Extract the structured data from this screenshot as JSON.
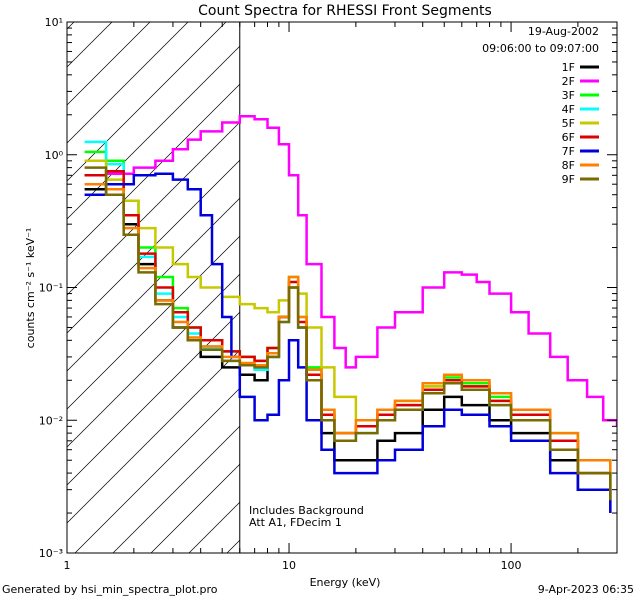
{
  "chart_data": {
    "type": "line",
    "title": "Count Spectra for RHESSI Front Segments",
    "xlabel": "Energy (keV)",
    "ylabel": "counts cm⁻² s⁻¹ keV⁻¹",
    "xscale": "log",
    "yscale": "log",
    "xlim": [
      1,
      300
    ],
    "ylim": [
      0.001,
      10
    ],
    "x_ticks": [
      {
        "value": 1,
        "label": "1"
      },
      {
        "value": 10,
        "label": "10"
      },
      {
        "value": 100,
        "label": "100"
      }
    ],
    "y_ticks": [
      {
        "value": 10,
        "label": "10¹"
      },
      {
        "value": 1,
        "label": "10⁰"
      },
      {
        "value": 0.1,
        "label": "10⁻¹"
      },
      {
        "value": 0.01,
        "label": "10⁻²"
      },
      {
        "value": 0.001,
        "label": "10⁻³"
      }
    ],
    "date": "19-Aug-2002",
    "time_range": "09:06:00 to 09:07:00",
    "shaded_region": {
      "from": 1,
      "to": 6,
      "description": "hatched low-energy region"
    },
    "annotations": [
      "Includes Background",
      "Att A1, FDecim 1"
    ],
    "series": [
      {
        "name": "1F",
        "color": "#000000",
        "points": [
          [
            1.2,
            0.55
          ],
          [
            1.5,
            0.6
          ],
          [
            1.8,
            0.3
          ],
          [
            2.1,
            0.15
          ],
          [
            2.5,
            0.08
          ],
          [
            3,
            0.05
          ],
          [
            3.5,
            0.04
          ],
          [
            4,
            0.03
          ],
          [
            5,
            0.025
          ],
          [
            6,
            0.022
          ],
          [
            7,
            0.02
          ],
          [
            8,
            0.03
          ],
          [
            9,
            0.06
          ],
          [
            10,
            0.1
          ],
          [
            11,
            0.05
          ],
          [
            12,
            0.02
          ],
          [
            14,
            0.008
          ],
          [
            16,
            0.005
          ],
          [
            20,
            0.005
          ],
          [
            25,
            0.007
          ],
          [
            30,
            0.008
          ],
          [
            40,
            0.012
          ],
          [
            50,
            0.015
          ],
          [
            60,
            0.013
          ],
          [
            80,
            0.01
          ],
          [
            100,
            0.008
          ],
          [
            150,
            0.005
          ],
          [
            200,
            0.003
          ],
          [
            280,
            0.002
          ]
        ]
      },
      {
        "name": "2F",
        "color": "#ff00ff",
        "points": [
          [
            1.2,
            0.7
          ],
          [
            1.5,
            0.72
          ],
          [
            2,
            0.8
          ],
          [
            2.5,
            0.9
          ],
          [
            3,
            1.1
          ],
          [
            3.5,
            1.3
          ],
          [
            4,
            1.5
          ],
          [
            5,
            1.75
          ],
          [
            6,
            1.95
          ],
          [
            7,
            1.85
          ],
          [
            8,
            1.6
          ],
          [
            9,
            1.2
          ],
          [
            10,
            0.7
          ],
          [
            11,
            0.35
          ],
          [
            12,
            0.15
          ],
          [
            14,
            0.06
          ],
          [
            16,
            0.035
          ],
          [
            18,
            0.025
          ],
          [
            20,
            0.03
          ],
          [
            25,
            0.05
          ],
          [
            30,
            0.065
          ],
          [
            40,
            0.1
          ],
          [
            50,
            0.13
          ],
          [
            60,
            0.125
          ],
          [
            70,
            0.11
          ],
          [
            80,
            0.09
          ],
          [
            100,
            0.065
          ],
          [
            120,
            0.045
          ],
          [
            150,
            0.03
          ],
          [
            180,
            0.02
          ],
          [
            220,
            0.015
          ],
          [
            260,
            0.01
          ],
          [
            300,
            0.009
          ]
        ]
      },
      {
        "name": "3F",
        "color": "#00ff00",
        "points": [
          [
            1.2,
            1.05
          ],
          [
            1.5,
            0.9
          ],
          [
            1.8,
            0.45
          ],
          [
            2.1,
            0.2
          ],
          [
            2.5,
            0.12
          ],
          [
            3,
            0.07
          ],
          [
            3.5,
            0.05
          ],
          [
            4,
            0.04
          ],
          [
            5,
            0.033
          ],
          [
            6,
            0.03
          ],
          [
            7,
            0.028
          ],
          [
            8,
            0.035
          ],
          [
            9,
            0.06
          ],
          [
            10,
            0.12
          ],
          [
            11,
            0.06
          ],
          [
            12,
            0.025
          ],
          [
            14,
            0.012
          ],
          [
            16,
            0.008
          ],
          [
            20,
            0.009
          ],
          [
            25,
            0.011
          ],
          [
            30,
            0.013
          ],
          [
            40,
            0.018
          ],
          [
            50,
            0.021
          ],
          [
            60,
            0.019
          ],
          [
            80,
            0.015
          ],
          [
            100,
            0.012
          ],
          [
            150,
            0.008
          ],
          [
            200,
            0.005
          ],
          [
            280,
            0.003
          ]
        ]
      },
      {
        "name": "4F",
        "color": "#00ffff",
        "points": [
          [
            1.2,
            1.25
          ],
          [
            1.5,
            0.85
          ],
          [
            1.8,
            0.35
          ],
          [
            2.1,
            0.17
          ],
          [
            2.5,
            0.09
          ],
          [
            3,
            0.06
          ],
          [
            3.5,
            0.045
          ],
          [
            4,
            0.035
          ],
          [
            5,
            0.028
          ],
          [
            6,
            0.026
          ],
          [
            7,
            0.024
          ],
          [
            8,
            0.03
          ],
          [
            9,
            0.055
          ],
          [
            10,
            0.1
          ],
          [
            11,
            0.05
          ],
          [
            12,
            0.02
          ],
          [
            14,
            0.01
          ],
          [
            16,
            0.007
          ],
          [
            20,
            0.008
          ],
          [
            25,
            0.01
          ],
          [
            30,
            0.012
          ],
          [
            40,
            0.016
          ],
          [
            50,
            0.019
          ],
          [
            60,
            0.017
          ],
          [
            80,
            0.013
          ],
          [
            100,
            0.01
          ],
          [
            150,
            0.007
          ],
          [
            200,
            0.004
          ],
          [
            280,
            0.0025
          ]
        ]
      },
      {
        "name": "5F",
        "color": "#c8c800",
        "points": [
          [
            1.2,
            0.9
          ],
          [
            1.5,
            0.65
          ],
          [
            1.8,
            0.45
          ],
          [
            2.1,
            0.28
          ],
          [
            2.5,
            0.2
          ],
          [
            3,
            0.15
          ],
          [
            3.5,
            0.12
          ],
          [
            4,
            0.1
          ],
          [
            5,
            0.085
          ],
          [
            6,
            0.075
          ],
          [
            7,
            0.07
          ],
          [
            8,
            0.065
          ],
          [
            9,
            0.08
          ],
          [
            10,
            0.1
          ],
          [
            11,
            0.09
          ],
          [
            12,
            0.05
          ],
          [
            14,
            0.025
          ],
          [
            16,
            0.015
          ],
          [
            20,
            0.01
          ],
          [
            25,
            0.012
          ],
          [
            30,
            0.014
          ],
          [
            40,
            0.018
          ],
          [
            50,
            0.02
          ],
          [
            60,
            0.018
          ],
          [
            80,
            0.014
          ],
          [
            100,
            0.011
          ],
          [
            150,
            0.007
          ],
          [
            200,
            0.004
          ],
          [
            280,
            0.002
          ]
        ]
      },
      {
        "name": "6F",
        "color": "#dd0000",
        "points": [
          [
            1.2,
            0.7
          ],
          [
            1.5,
            0.75
          ],
          [
            1.8,
            0.35
          ],
          [
            2.1,
            0.18
          ],
          [
            2.5,
            0.1
          ],
          [
            3,
            0.065
          ],
          [
            3.5,
            0.05
          ],
          [
            4,
            0.04
          ],
          [
            5,
            0.033
          ],
          [
            6,
            0.03
          ],
          [
            7,
            0.028
          ],
          [
            8,
            0.035
          ],
          [
            9,
            0.06
          ],
          [
            10,
            0.11
          ],
          [
            11,
            0.055
          ],
          [
            12,
            0.022
          ],
          [
            14,
            0.011
          ],
          [
            16,
            0.008
          ],
          [
            20,
            0.009
          ],
          [
            25,
            0.011
          ],
          [
            30,
            0.013
          ],
          [
            40,
            0.017
          ],
          [
            50,
            0.02
          ],
          [
            60,
            0.018
          ],
          [
            80,
            0.014
          ],
          [
            100,
            0.011
          ],
          [
            150,
            0.007
          ],
          [
            200,
            0.004
          ],
          [
            280,
            0.0025
          ]
        ]
      },
      {
        "name": "7F",
        "color": "#0000dd",
        "points": [
          [
            1.2,
            0.5
          ],
          [
            1.5,
            0.6
          ],
          [
            2,
            0.7
          ],
          [
            2.5,
            0.72
          ],
          [
            3,
            0.65
          ],
          [
            3.5,
            0.55
          ],
          [
            4,
            0.35
          ],
          [
            4.5,
            0.15
          ],
          [
            5,
            0.06
          ],
          [
            5.5,
            0.03
          ],
          [
            6,
            0.015
          ],
          [
            7,
            0.01
          ],
          [
            8,
            0.011
          ],
          [
            9,
            0.02
          ],
          [
            10,
            0.04
          ],
          [
            11,
            0.025
          ],
          [
            12,
            0.01
          ],
          [
            14,
            0.006
          ],
          [
            16,
            0.004
          ],
          [
            20,
            0.004
          ],
          [
            25,
            0.005
          ],
          [
            30,
            0.006
          ],
          [
            40,
            0.009
          ],
          [
            50,
            0.012
          ],
          [
            60,
            0.011
          ],
          [
            80,
            0.009
          ],
          [
            100,
            0.007
          ],
          [
            150,
            0.004
          ],
          [
            200,
            0.003
          ],
          [
            280,
            0.002
          ]
        ]
      },
      {
        "name": "8F",
        "color": "#ff8000",
        "points": [
          [
            1.2,
            0.6
          ],
          [
            1.5,
            0.55
          ],
          [
            1.8,
            0.28
          ],
          [
            2.1,
            0.14
          ],
          [
            2.5,
            0.08
          ],
          [
            3,
            0.055
          ],
          [
            3.5,
            0.042
          ],
          [
            4,
            0.036
          ],
          [
            5,
            0.03
          ],
          [
            6,
            0.027
          ],
          [
            7,
            0.026
          ],
          [
            8,
            0.032
          ],
          [
            9,
            0.06
          ],
          [
            10,
            0.12
          ],
          [
            11,
            0.06
          ],
          [
            12,
            0.024
          ],
          [
            14,
            0.012
          ],
          [
            16,
            0.008
          ],
          [
            20,
            0.01
          ],
          [
            25,
            0.012
          ],
          [
            30,
            0.014
          ],
          [
            40,
            0.019
          ],
          [
            50,
            0.022
          ],
          [
            60,
            0.02
          ],
          [
            80,
            0.016
          ],
          [
            100,
            0.012
          ],
          [
            150,
            0.008
          ],
          [
            200,
            0.005
          ],
          [
            280,
            0.003
          ]
        ]
      },
      {
        "name": "9F",
        "color": "#7a6a00",
        "points": [
          [
            1.2,
            0.8
          ],
          [
            1.5,
            0.5
          ],
          [
            1.8,
            0.25
          ],
          [
            2.1,
            0.13
          ],
          [
            2.5,
            0.075
          ],
          [
            3,
            0.05
          ],
          [
            3.5,
            0.04
          ],
          [
            4,
            0.034
          ],
          [
            5,
            0.028
          ],
          [
            6,
            0.026
          ],
          [
            7,
            0.025
          ],
          [
            8,
            0.03
          ],
          [
            9,
            0.055
          ],
          [
            10,
            0.1
          ],
          [
            11,
            0.05
          ],
          [
            12,
            0.02
          ],
          [
            14,
            0.01
          ],
          [
            16,
            0.007
          ],
          [
            20,
            0.008
          ],
          [
            25,
            0.01
          ],
          [
            30,
            0.012
          ],
          [
            40,
            0.016
          ],
          [
            50,
            0.019
          ],
          [
            60,
            0.017
          ],
          [
            80,
            0.013
          ],
          [
            100,
            0.01
          ],
          [
            150,
            0.006
          ],
          [
            200,
            0.004
          ],
          [
            280,
            0.0025
          ]
        ]
      }
    ]
  },
  "footer": {
    "left": "Generated by hsi_min_spectra_plot.pro",
    "right": "9-Apr-2023 06:35"
  }
}
